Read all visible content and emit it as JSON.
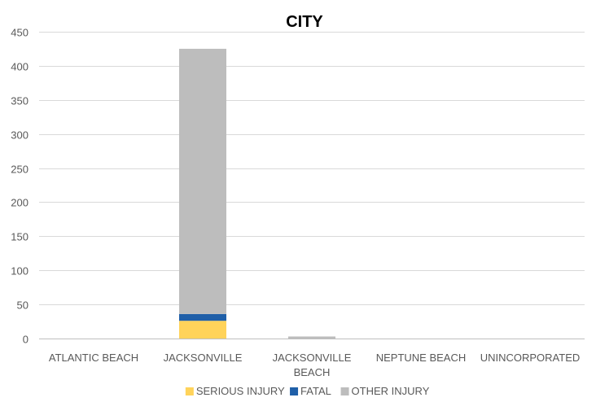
{
  "chart_data": {
    "type": "bar",
    "stacked": true,
    "title": "CITY",
    "xlabel": "",
    "ylabel": "",
    "ylim": [
      0,
      450
    ],
    "yticks": [
      0,
      50,
      100,
      150,
      200,
      250,
      300,
      350,
      400,
      450
    ],
    "grid": true,
    "legend_position": "bottom",
    "categories": [
      [
        "ATLANTIC BEACH"
      ],
      [
        "JACKSONVILLE"
      ],
      [
        "JACKSONVILLE",
        "BEACH"
      ],
      [
        "NEPTUNE BEACH"
      ],
      [
        "UNINCORPORATED"
      ]
    ],
    "series": [
      {
        "name": "SERIOUS INJURY",
        "color": "#FFD35A",
        "values": [
          0,
          26,
          0,
          0,
          0
        ]
      },
      {
        "name": "FATAL",
        "color": "#1F5FA8",
        "values": [
          0,
          10,
          0,
          0,
          0
        ]
      },
      {
        "name": "OTHER INJURY",
        "color": "#BDBDBD",
        "values": [
          0,
          389,
          3,
          0,
          0
        ]
      }
    ]
  }
}
